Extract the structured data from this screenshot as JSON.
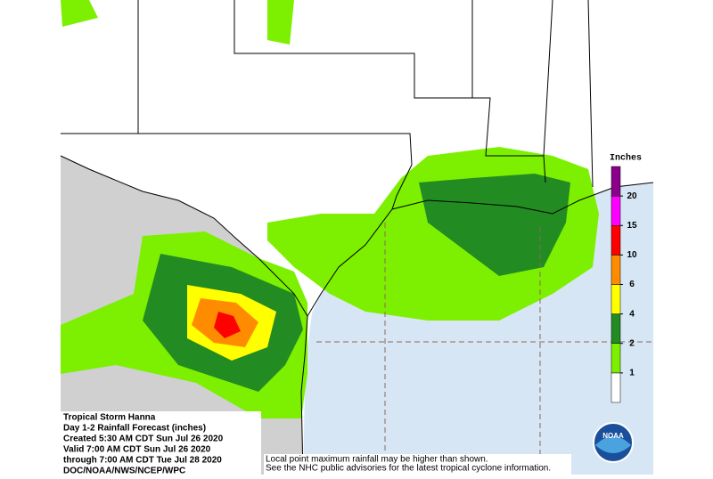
{
  "legend": {
    "title": "Inches",
    "values": [
      1,
      2,
      4,
      6,
      10,
      15,
      20
    ],
    "colors": [
      "#ffffff",
      "#7cf000",
      "#228b22",
      "#ffff00",
      "#ff8c00",
      "#ff0000",
      "#ff00ff",
      "#8b008b"
    ]
  },
  "info": {
    "lines": [
      "Tropical Storm Hanna",
      "Day 1-2 Rainfall Forecast (inches)",
      "Created 5:30 AM CDT Sun Jul 26 2020",
      "Valid 7:00 AM CDT Sun Jul 26 2020",
      "through 7:00 AM CDT Tue Jul 28 2020",
      "DOC/NOAA/NWS/NCEP/WPC"
    ]
  },
  "disclaimer": {
    "lines": [
      "Local point maximum rainfall may be higher than shown.",
      "See the NHC public advisories for the latest tropical cyclone information."
    ]
  },
  "logo": "NOAA"
}
